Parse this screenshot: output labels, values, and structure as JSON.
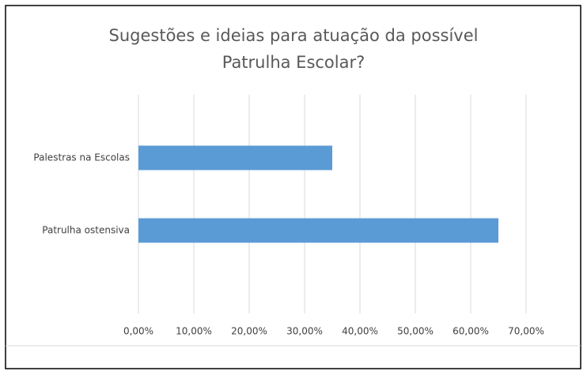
{
  "chart_data": {
    "type": "hbar",
    "title": [
      "Sugestões e ideias para atuação da possível",
      "Patrulha Escolar?"
    ],
    "categories": [
      "Palestras na Escolas",
      "Patrulha ostensiva"
    ],
    "values": [
      35,
      65
    ],
    "color": "#5b9bd5",
    "xlim": [
      0,
      70
    ],
    "xticks": [
      {
        "value": 0,
        "label": "0,00%"
      },
      {
        "value": 10,
        "label": "10,00%"
      },
      {
        "value": 20,
        "label": "20,00%"
      },
      {
        "value": 30,
        "label": "30,00%"
      },
      {
        "value": 40,
        "label": "40,00%"
      },
      {
        "value": 50,
        "label": "50,00%"
      },
      {
        "value": 60,
        "label": "60,00%"
      },
      {
        "value": 70,
        "label": "70,00%"
      }
    ],
    "grid": true
  }
}
